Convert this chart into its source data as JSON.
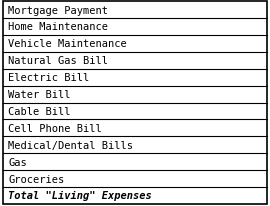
{
  "rows": [
    {
      "text": "Mortgage Payment",
      "bold": false,
      "italic": false
    },
    {
      "text": "Home Maintenance",
      "bold": false,
      "italic": false
    },
    {
      "text": "Vehicle Maintenance",
      "bold": false,
      "italic": false
    },
    {
      "text": "Natural Gas Bill",
      "bold": false,
      "italic": false
    },
    {
      "text": "Electric Bill",
      "bold": false,
      "italic": false
    },
    {
      "text": "Water Bill",
      "bold": false,
      "italic": false
    },
    {
      "text": "Cable Bill",
      "bold": false,
      "italic": false
    },
    {
      "text": "Cell Phone Bill",
      "bold": false,
      "italic": false
    },
    {
      "text": "Medical/Dental Bills",
      "bold": false,
      "italic": false
    },
    {
      "text": "Gas",
      "bold": false,
      "italic": false
    },
    {
      "text": "Groceries",
      "bold": false,
      "italic": false
    },
    {
      "text": "Total \"Living\" Expenses",
      "bold": true,
      "italic": true
    }
  ],
  "background_color": "#ffffff",
  "border_color": "#000000",
  "font_size": 7.5,
  "text_color": "#000000",
  "font_family": "monospace",
  "fig_width": 2.7,
  "fig_height": 2.07,
  "dpi": 100
}
